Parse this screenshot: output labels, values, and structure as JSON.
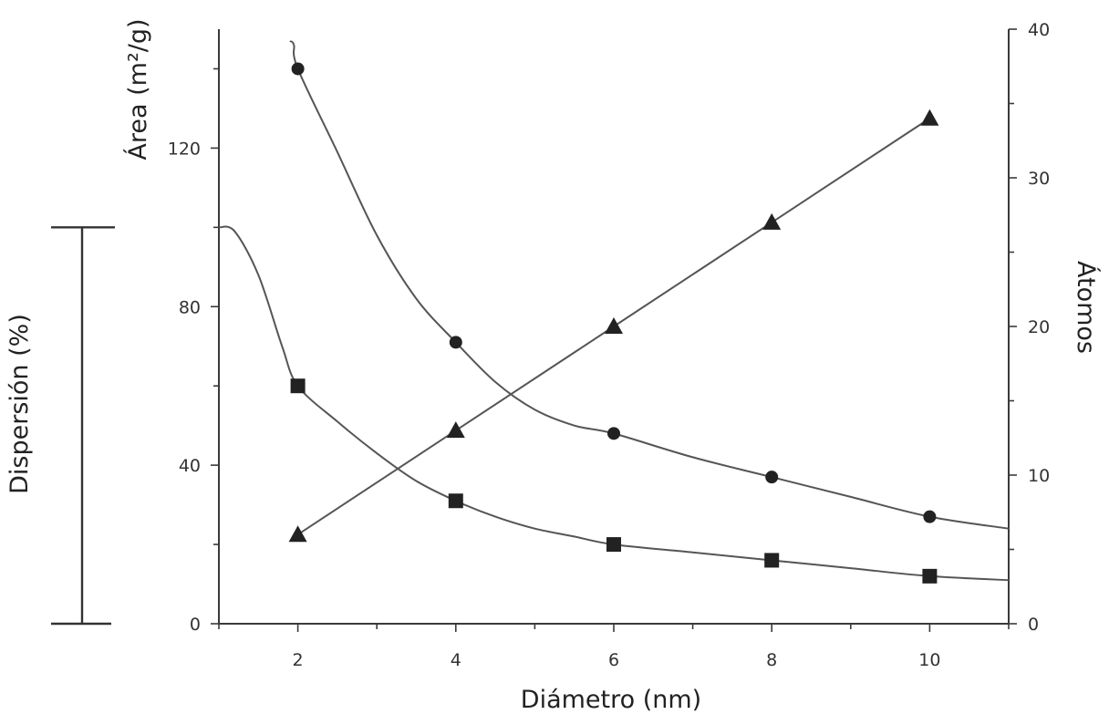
{
  "chart_data": {
    "type": "line",
    "xlabel": "Diámetro (nm)",
    "ylabel_left_top": "Área (m²/g)",
    "ylabel_left_outer": "Dispersión (%)",
    "ylabel_right": "Átomos",
    "xlim": [
      1,
      11
    ],
    "x_ticks": [
      2,
      4,
      6,
      8,
      10
    ],
    "x_tick_labels": [
      "2",
      "4",
      "6",
      "8",
      "10"
    ],
    "ylim_left": [
      0,
      150
    ],
    "y_left_ticks": [
      0,
      40,
      80,
      120
    ],
    "y_left_tick_labels": [
      "0",
      "40",
      "80",
      "120"
    ],
    "ylim_right": [
      0,
      40
    ],
    "y_right_ticks": [
      0,
      10,
      20,
      30,
      40
    ],
    "y_right_tick_labels": [
      "0",
      "10",
      "20",
      "30",
      "40"
    ],
    "dispersion_bracket": [
      0,
      100
    ],
    "grid": false,
    "series": [
      {
        "marker": "circle",
        "axis": "left",
        "x": [
          2,
          4,
          6,
          8,
          10
        ],
        "y": [
          140,
          71,
          48,
          37,
          27
        ],
        "curve_x": [
          1.9,
          1.95,
          2,
          2.5,
          3,
          3.5,
          4,
          4.5,
          5,
          5.5,
          6,
          7,
          8,
          9,
          10,
          11
        ],
        "curve_y": [
          147,
          146,
          140,
          119,
          98,
          82,
          71,
          61,
          54,
          50,
          48,
          42,
          37,
          32,
          27,
          24
        ]
      },
      {
        "marker": "square",
        "axis": "left",
        "x": [
          2,
          4,
          6,
          8,
          10
        ],
        "y": [
          60,
          31,
          20,
          16,
          12
        ],
        "curve_x": [
          1,
          1.2,
          1.5,
          1.8,
          2,
          2.5,
          3,
          3.5,
          4,
          4.5,
          5,
          5.5,
          6,
          7,
          8,
          9,
          10,
          11
        ],
        "curve_y": [
          100,
          99,
          88,
          70,
          60,
          51,
          43,
          36,
          31,
          27,
          24,
          22,
          20,
          18,
          16,
          14,
          12,
          11
        ]
      },
      {
        "marker": "triangle",
        "axis": "right",
        "x": [
          2,
          4,
          6,
          8,
          10
        ],
        "y": [
          6,
          13,
          20,
          27,
          34
        ]
      }
    ]
  }
}
